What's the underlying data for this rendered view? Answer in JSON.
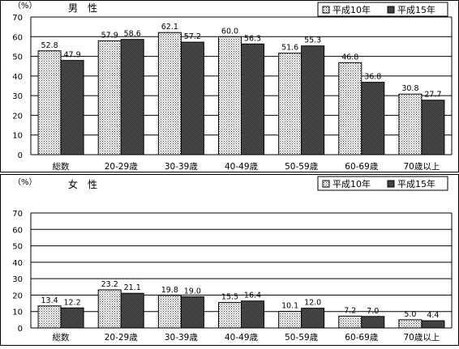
{
  "chart_data": [
    {
      "type": "bar",
      "title": "男　性",
      "unit": "（%）",
      "categories": [
        "総数",
        "20-29歳",
        "30-39歳",
        "40-49歳",
        "50-59歳",
        "60-69歳",
        "70歳以上"
      ],
      "series": [
        {
          "name": "平成10年",
          "values": [
            52.8,
            57.9,
            62.1,
            60.0,
            51.6,
            46.8,
            30.8
          ]
        },
        {
          "name": "平成15年",
          "values": [
            47.9,
            58.6,
            57.2,
            56.3,
            55.3,
            36.8,
            27.7
          ]
        }
      ],
      "ylim": [
        0,
        70
      ],
      "yticks": [
        0,
        10,
        20,
        30,
        40,
        50,
        60,
        70
      ],
      "grid": true,
      "legend": "top-right"
    },
    {
      "type": "bar",
      "title": "女　性",
      "unit": "（%）",
      "categories": [
        "総数",
        "20-29歳",
        "30-39歳",
        "40-49歳",
        "50-59歳",
        "60-69歳",
        "70歳以上"
      ],
      "series": [
        {
          "name": "平成10年",
          "values": [
            13.4,
            23.2,
            19.8,
            15.5,
            10.1,
            7.2,
            5.0
          ]
        },
        {
          "name": "平成15年",
          "values": [
            12.2,
            21.1,
            19.0,
            16.4,
            12.0,
            7.0,
            4.4
          ]
        }
      ],
      "ylim": [
        0,
        70
      ],
      "yticks": [
        0,
        10,
        20,
        30,
        40,
        50,
        60,
        70
      ],
      "grid": true,
      "legend": "top-right"
    }
  ],
  "colors": {
    "series_1_fill": "dotted-light",
    "series_2_fill": "dark-gray",
    "axis": "#000000",
    "background": "#ffffff"
  }
}
